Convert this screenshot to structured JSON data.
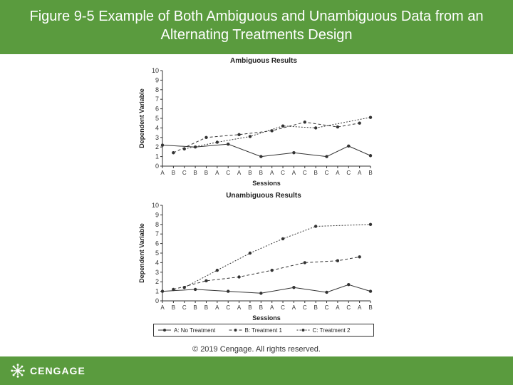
{
  "title": "Figure 9-5 Example of Both Ambiguous and Unambiguous Data from an Alternating Treatments Design",
  "copyright": "© 2019 Cengage. All rights reserved.",
  "brand": "CENGAGE",
  "chart1": {
    "type": "line",
    "title": "Ambiguous Results",
    "ylabel": "Dependent Variable",
    "xlabel": "Sessions",
    "ylim": [
      0,
      10
    ],
    "ytick_step": 1,
    "x_categories": [
      "A",
      "B",
      "C",
      "B",
      "B",
      "A",
      "C",
      "A",
      "B",
      "B",
      "A",
      "C",
      "A",
      "C",
      "B",
      "C",
      "A",
      "C",
      "A",
      "B"
    ],
    "series": {
      "A_no_treatment": {
        "marker": "circle",
        "dash": "none",
        "color": "#333333",
        "points": [
          [
            1,
            2.2
          ],
          [
            4,
            2.0
          ],
          [
            7,
            2.3
          ],
          [
            10,
            1.0
          ],
          [
            13,
            1.4
          ],
          [
            16,
            1.0
          ],
          [
            18,
            2.1
          ],
          [
            20,
            1.1
          ]
        ]
      },
      "B_treatment1": {
        "marker": "circle",
        "dash": "4,3",
        "color": "#333333",
        "points": [
          [
            2,
            1.4
          ],
          [
            5,
            3.0
          ],
          [
            8,
            3.3
          ],
          [
            11,
            3.7
          ],
          [
            14,
            4.6
          ],
          [
            17,
            4.1
          ],
          [
            19,
            4.5
          ]
        ]
      },
      "C_treatment2": {
        "marker": "circle",
        "dash": "2,2",
        "color": "#333333",
        "points": [
          [
            3,
            1.8
          ],
          [
            6,
            2.5
          ],
          [
            9,
            3.1
          ],
          [
            12,
            4.2
          ],
          [
            15,
            4.0
          ],
          [
            20,
            5.1
          ]
        ]
      }
    },
    "background_color": "#ffffff",
    "axis_color": "#333333",
    "label_fontsize": 9
  },
  "chart2": {
    "type": "line",
    "title": "Unambiguous Results",
    "ylabel": "Dependent Variable",
    "xlabel": "Sessions",
    "ylim": [
      0,
      10
    ],
    "ytick_step": 1,
    "x_categories": [
      "A",
      "B",
      "C",
      "B",
      "B",
      "A",
      "C",
      "A",
      "B",
      "B",
      "A",
      "C",
      "A",
      "C",
      "B",
      "C",
      "A",
      "C",
      "A",
      "B"
    ],
    "series": {
      "A_no_treatment": {
        "marker": "circle",
        "dash": "none",
        "color": "#333333",
        "points": [
          [
            1,
            1.0
          ],
          [
            4,
            1.2
          ],
          [
            7,
            1.0
          ],
          [
            10,
            0.8
          ],
          [
            13,
            1.4
          ],
          [
            16,
            0.9
          ],
          [
            18,
            1.7
          ],
          [
            20,
            1.0
          ]
        ]
      },
      "B_treatment1": {
        "marker": "circle",
        "dash": "4,3",
        "color": "#333333",
        "points": [
          [
            2,
            1.2
          ],
          [
            5,
            2.1
          ],
          [
            8,
            2.5
          ],
          [
            11,
            3.2
          ],
          [
            14,
            4.0
          ],
          [
            17,
            4.2
          ],
          [
            19,
            4.6
          ]
        ]
      },
      "C_treatment2": {
        "marker": "circle",
        "dash": "2,2",
        "color": "#333333",
        "points": [
          [
            3,
            1.4
          ],
          [
            6,
            3.2
          ],
          [
            9,
            5.0
          ],
          [
            12,
            6.5
          ],
          [
            15,
            7.8
          ],
          [
            20,
            8.0
          ]
        ]
      }
    },
    "background_color": "#ffffff",
    "axis_color": "#333333",
    "label_fontsize": 9
  },
  "legend": {
    "items": [
      {
        "marker": "circle",
        "dash": "none",
        "label": "A: No Treatment"
      },
      {
        "marker": "circle",
        "dash": "4,3",
        "label": "B: Treatment 1"
      },
      {
        "marker": "circle",
        "dash": "2,2",
        "label": "C: Treatment 2"
      }
    ]
  }
}
